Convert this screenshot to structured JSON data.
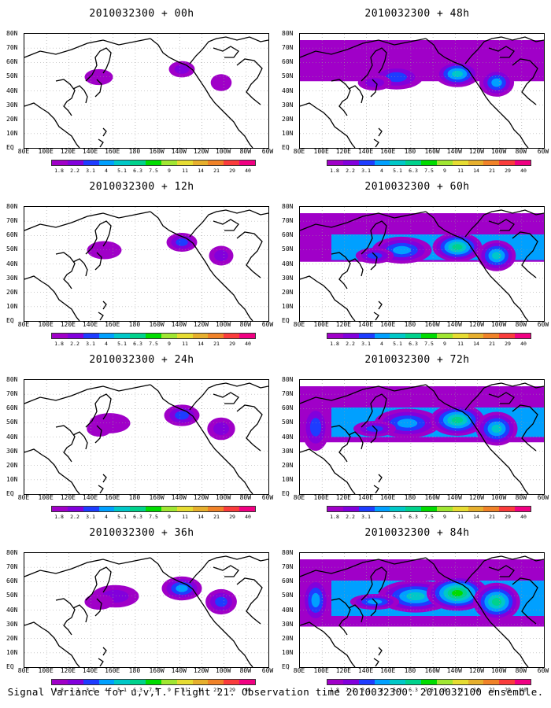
{
  "caption": "Signal Variance for u,v,T. Flight 21. Observation time 2010032300. 2010032100 ensemble.",
  "y_ticks": [
    "80N",
    "70N",
    "60N",
    "50N",
    "40N",
    "30N",
    "20N",
    "10N",
    "EQ"
  ],
  "x_ticks": [
    "80E",
    "100E",
    "120E",
    "140E",
    "160E",
    "180",
    "160W",
    "140W",
    "120W",
    "100W",
    "80W",
    "60W"
  ],
  "colorbar": {
    "colors": [
      "#a000c8",
      "#8200dc",
      "#1e3cff",
      "#00a0ff",
      "#00c8c8",
      "#00d28c",
      "#00dc00",
      "#a0e632",
      "#e6dc32",
      "#e6af2d",
      "#f08228",
      "#fa3c3c",
      "#f00082"
    ],
    "labels": [
      "1.8",
      "2.2",
      "3.1",
      "4",
      "5.1",
      "6.3",
      "7.5",
      "9",
      "11",
      "14",
      "21",
      "29",
      "40"
    ]
  },
  "panels": [
    {
      "title": "2010032300 + 00h",
      "intensity": 0.15
    },
    {
      "title": "2010032300 + 48h",
      "intensity": 0.55
    },
    {
      "title": "2010032300 + 12h",
      "intensity": 0.25
    },
    {
      "title": "2010032300 + 60h",
      "intensity": 0.65
    },
    {
      "title": "2010032300 + 24h",
      "intensity": 0.35
    },
    {
      "title": "2010032300 + 72h",
      "intensity": 0.75
    },
    {
      "title": "2010032300 + 36h",
      "intensity": 0.45
    },
    {
      "title": "2010032300 + 84h",
      "intensity": 0.9
    }
  ]
}
